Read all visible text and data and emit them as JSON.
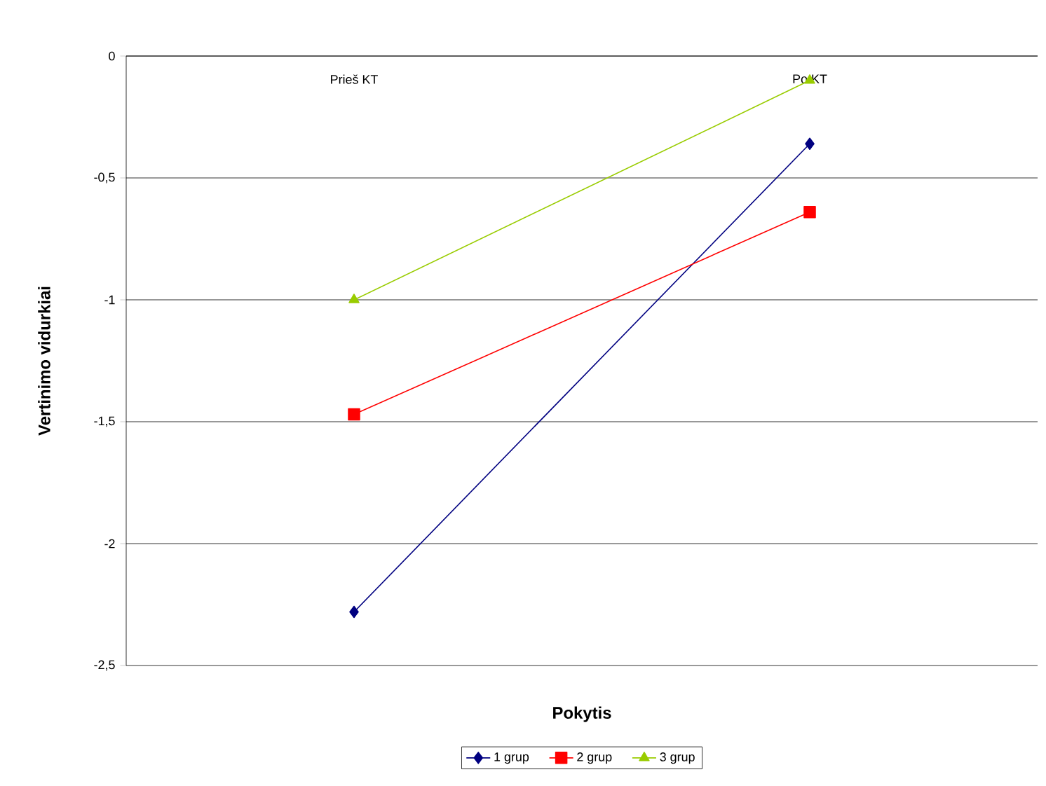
{
  "chart_data": {
    "type": "line",
    "xlabel": "Pokytis",
    "ylabel": "Vertinimo vidurkiai",
    "categories": [
      "Prieš KT",
      "Po KT"
    ],
    "series": [
      {
        "name": "1 grup",
        "color": "#000080",
        "marker": "diamond",
        "values": [
          -2.28,
          -0.36
        ]
      },
      {
        "name": "2 grup",
        "color": "#ff0000",
        "marker": "square",
        "values": [
          -1.47,
          -0.64
        ]
      },
      {
        "name": "3 grup",
        "color": "#99cc00",
        "marker": "triangle",
        "values": [
          -1.0,
          -0.1
        ]
      }
    ],
    "ylim": [
      -2.5,
      0
    ],
    "yticks": [
      0,
      {
        "value": -0.5,
        "label": "-0,5"
      },
      -1,
      {
        "value": -1.5,
        "label": "-1,5"
      },
      -2,
      {
        "value": -2.5,
        "label": "-2,5"
      }
    ],
    "grid": "y",
    "legend": "bottom",
    "line_style": "solid"
  }
}
